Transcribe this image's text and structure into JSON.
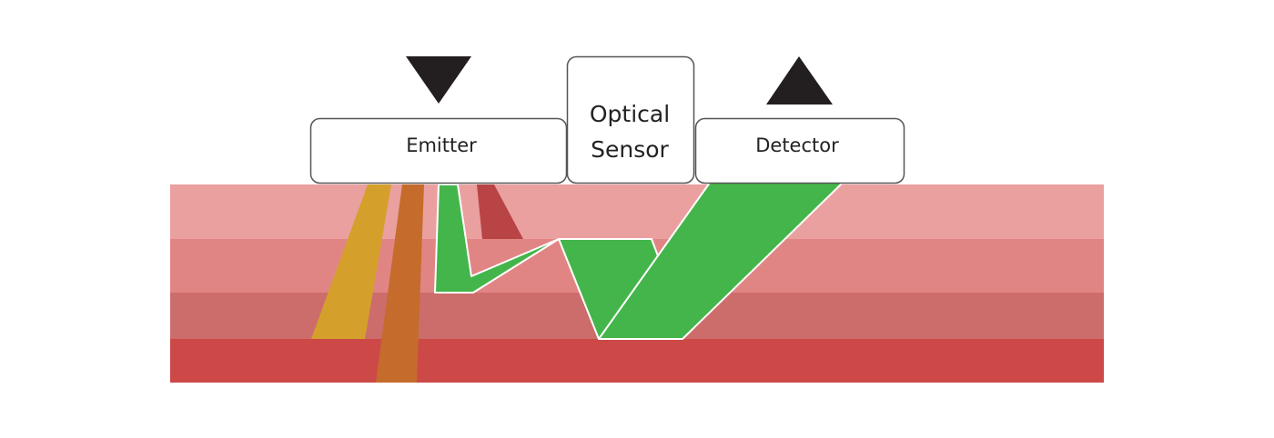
{
  "labels": {
    "emitter": "Emitter",
    "sensor_line1": "Optical",
    "sensor_line2": "Sensor",
    "detector": "Detector"
  },
  "icons": {
    "emitter_arrow": "down-triangle-icon",
    "detector_arrow": "up-triangle-icon"
  },
  "colors": {
    "layer_1": "#EAA09F",
    "layer_2": "#E18584",
    "layer_3": "#CC6D6C",
    "layer_4": "#CC4948",
    "beam_yellow": "#D4A02B",
    "beam_orange": "#C56B2C",
    "beam_green": "#44B54A",
    "beam_red": "#B84446",
    "arrow": "#231F20",
    "box_border": "#555555"
  }
}
